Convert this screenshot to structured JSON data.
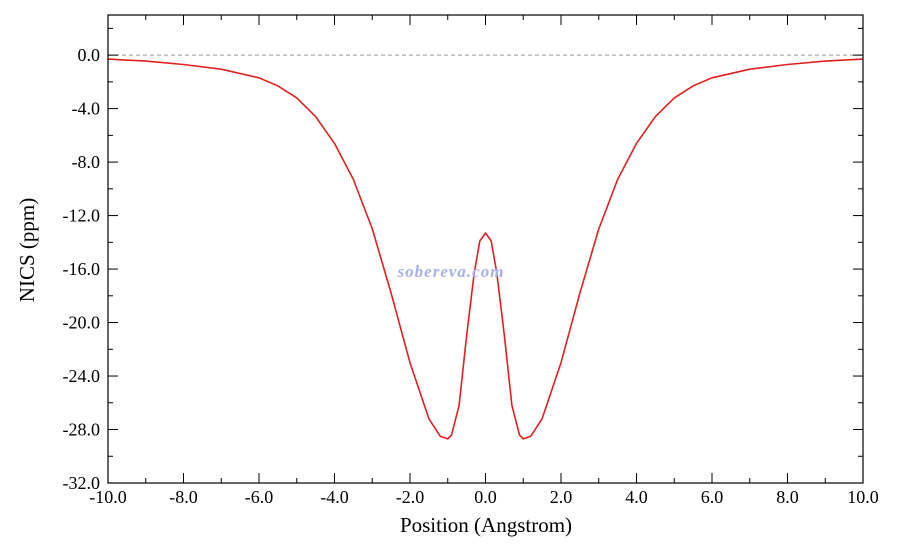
{
  "chart_data": {
    "type": "line",
    "xlabel": "Position (Angstrom)",
    "ylabel": "NICS (ppm)",
    "xlim": [
      -10.0,
      10.0
    ],
    "ylim": [
      -32.0,
      3.0
    ],
    "x_ticks": [
      "-10.0",
      "-8.0",
      "-6.0",
      "-4.0",
      "-2.0",
      "0.0",
      "2.0",
      "4.0",
      "6.0",
      "8.0",
      "10.0"
    ],
    "x_tick_values": [
      -10,
      -8,
      -6,
      -4,
      -2,
      0,
      2,
      4,
      6,
      8,
      10
    ],
    "y_ticks": [
      "0.0",
      "-4.0",
      "-8.0",
      "-12.0",
      "-16.0",
      "-20.0",
      "-24.0",
      "-28.0",
      "-32.0"
    ],
    "y_tick_values": [
      0,
      -4,
      -8,
      -12,
      -16,
      -20,
      -24,
      -28,
      -32
    ],
    "reference_line": {
      "y": 0.0,
      "style": "dashed",
      "color": "#999999"
    },
    "grid": false,
    "series": [
      {
        "color": "#e02020",
        "x": [
          -10.0,
          -9.0,
          -8.0,
          -7.0,
          -6.0,
          -5.5,
          -5.0,
          -4.5,
          -4.0,
          -3.5,
          -3.0,
          -2.5,
          -2.0,
          -1.5,
          -1.2,
          -1.0,
          -0.9,
          -0.7,
          -0.5,
          -0.3,
          -0.15,
          0.0,
          0.15,
          0.3,
          0.5,
          0.7,
          0.9,
          1.0,
          1.2,
          1.5,
          2.0,
          2.5,
          3.0,
          3.5,
          4.0,
          4.5,
          5.0,
          5.5,
          6.0,
          7.0,
          8.0,
          9.0,
          10.0
        ],
        "y": [
          -0.3,
          -0.45,
          -0.7,
          -1.05,
          -1.7,
          -2.3,
          -3.2,
          -4.6,
          -6.6,
          -9.3,
          -13.0,
          -17.8,
          -23.0,
          -27.2,
          -28.5,
          -28.7,
          -28.4,
          -26.2,
          -21.0,
          -16.3,
          -13.9,
          -13.3,
          -13.9,
          -16.3,
          -21.0,
          -26.2,
          -28.4,
          -28.7,
          -28.5,
          -27.2,
          -23.0,
          -17.8,
          -13.0,
          -9.3,
          -6.6,
          -4.6,
          -3.2,
          -2.3,
          -1.7,
          -1.05,
          -0.7,
          -0.45,
          -0.3
        ]
      }
    ]
  },
  "watermark": "sobereva.com"
}
